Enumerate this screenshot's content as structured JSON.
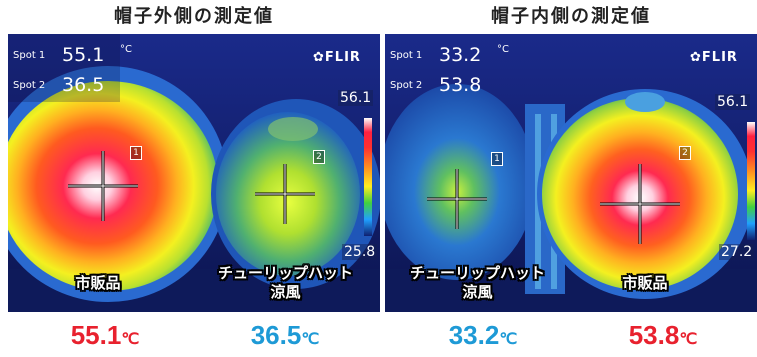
{
  "panels": [
    {
      "title": "帽子外側の測定値",
      "spot1_label": "Spot 1",
      "spot1_value": "55.1",
      "spot2_label": "Spot 2",
      "spot2_value": "36.5",
      "unit": "°C",
      "brand": "FLIR",
      "scale_max": "56.1",
      "scale_min": "25.8",
      "marker1": "1",
      "marker2": "2",
      "caption_left": "市販品",
      "caption_right_line1": "チューリップハット",
      "caption_right_line2": "涼風"
    },
    {
      "title": "帽子内側の測定値",
      "spot1_label": "Spot 1",
      "spot1_value": "33.2",
      "spot2_label": "Spot 2",
      "spot2_value": "53.8",
      "unit": "°C",
      "brand": "FLIR",
      "scale_max": "56.1",
      "scale_min": "27.2",
      "marker1": "1",
      "marker2": "2",
      "caption_left_line1": "チューリップハット",
      "caption_left_line2": "涼風",
      "caption_right": "市販品"
    }
  ],
  "results": [
    {
      "value": "55.1",
      "unit": "℃",
      "color": "#e8212e"
    },
    {
      "value": "36.5",
      "unit": "℃",
      "color": "#1e9ad6"
    },
    {
      "value": "33.2",
      "unit": "℃",
      "color": "#1e9ad6"
    },
    {
      "value": "53.8",
      "unit": "℃",
      "color": "#e8212e"
    }
  ]
}
